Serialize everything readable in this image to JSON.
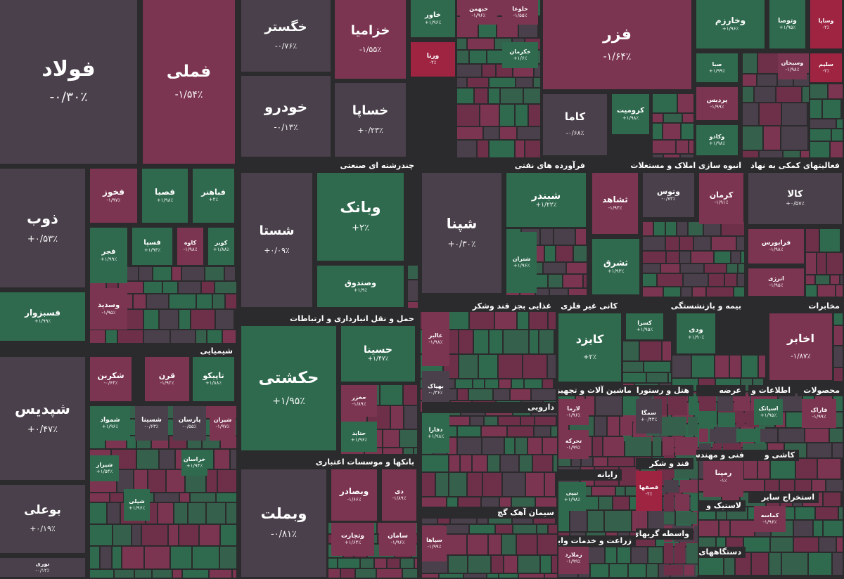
{
  "sections": [
    {
      "title": "چندرشته ای صنعتی"
    },
    {
      "title": "فرآورده های نفتی"
    },
    {
      "title": "انبوه سازی املاک و مستغلات"
    },
    {
      "title": "فعالیتهای کمکی به نهاد های"
    },
    {
      "title": "حمل و نقل انبارداری و ارتباطات"
    },
    {
      "title": "غذایی بجز قند وشکر"
    },
    {
      "title": "کانی غیر فلزی"
    },
    {
      "title": "بیمه و بازنشستگی"
    },
    {
      "title": "مخابرات"
    },
    {
      "title": "شیمیایی"
    },
    {
      "title": "بانکها و موسسات اعتباری"
    },
    {
      "title": "دارویی"
    },
    {
      "title": "ماشین آلات و تجهیزات"
    },
    {
      "title": "هتل و رستوران"
    },
    {
      "title": "عرضه"
    },
    {
      "title": "اطلاعات و"
    },
    {
      "title": "محصولات"
    },
    {
      "title": "سیمان آهک گچ"
    },
    {
      "title": "رایانه"
    },
    {
      "title": "قند و شکر"
    },
    {
      "title": "فنی و مهندسی"
    },
    {
      "title": "کاشی و"
    },
    {
      "title": "لاستیک و"
    },
    {
      "title": "استخراج سایر"
    },
    {
      "title": "واسطه گریهای مالی"
    },
    {
      "title": "زراعت و خدمات وابسته"
    },
    {
      "title": "دستگاههای"
    }
  ],
  "tiles": [
    {
      "name": "فولاد",
      "change": "-۰/۳۰٪",
      "color": "#4a404b"
    },
    {
      "name": "فملی",
      "change": "-۱/۵۴٪",
      "color": "#7c3550"
    },
    {
      "name": "خگستر",
      "change": "-۰/۷۶٪",
      "color": "#4a404b"
    },
    {
      "name": "خودرو",
      "change": "-۰/۱۳٪",
      "color": "#4a404b"
    },
    {
      "name": "خزامیا",
      "change": "-۱/۵۵٪",
      "color": "#7c3550"
    },
    {
      "name": "خساپا",
      "change": "+۰/۲۳٪",
      "color": "#4a404b"
    },
    {
      "name": "خاور",
      "change": "+۱/۹۶٪",
      "color": "#2f6a4e"
    },
    {
      "name": "ورنا",
      "change": "-۲٪",
      "color": "#9e2442"
    },
    {
      "name": "خبهمن",
      "change": "-۱/۹۶٪",
      "color": "#7c3550"
    },
    {
      "name": "خلوعا",
      "change": "-۱/۵۵٪",
      "color": "#7c3550"
    },
    {
      "name": "خکرمان",
      "change": "+۱/۶٪",
      "color": "#2f6a4e"
    },
    {
      "name": "فزر",
      "change": "-۱/۶۴٪",
      "color": "#7c3550"
    },
    {
      "name": "کاما",
      "change": "-۰/۶۸٪",
      "color": "#4a404b"
    },
    {
      "name": "کرومیت",
      "change": "+۱/۹۸٪",
      "color": "#2f6a4e"
    },
    {
      "name": "وخارزم",
      "change": "+۱/۹۶٪",
      "color": "#2f6a4e"
    },
    {
      "name": "وتوصا",
      "change": "+۱/۹۵٪",
      "color": "#2f6a4e"
    },
    {
      "name": "وساپا",
      "change": "-۲٪",
      "color": "#9e2442"
    },
    {
      "name": "صبا",
      "change": "+۱/۹۹٪",
      "color": "#2f6a4e"
    },
    {
      "name": "سلیم",
      "change": "-۲٪",
      "color": "#9e2442"
    },
    {
      "name": "وسبحان",
      "change": "-۱/۹۸٪",
      "color": "#7c3550"
    },
    {
      "name": "پردیس",
      "change": "-۱/۹۹٪",
      "color": "#7c3550"
    },
    {
      "name": "وکادو",
      "change": "+۱/۹۸٪",
      "color": "#2f6a4e"
    },
    {
      "name": "ذوب",
      "change": "+۰/۵۳٪",
      "color": "#4a404b"
    },
    {
      "name": "فسبزوار",
      "change": "+۱/۹۹٪",
      "color": "#2f6a4e"
    },
    {
      "name": "فخوز",
      "change": "-۱/۹۷٪",
      "color": "#7c3550"
    },
    {
      "name": "فصبا",
      "change": "+۱/۹۸٪",
      "color": "#2f6a4e"
    },
    {
      "name": "فباهنر",
      "change": "+۲٪",
      "color": "#2f6a4e"
    },
    {
      "name": "فجر",
      "change": "+۱/۹۹٪",
      "color": "#2f6a4e"
    },
    {
      "name": "فسپا",
      "change": "+۱/۹۳٪",
      "color": "#2f6a4e"
    },
    {
      "name": "کاوه",
      "change": "-۱/۹۸٪",
      "color": "#7c3550"
    },
    {
      "name": "کویر",
      "change": "+۱/۸۸٪",
      "color": "#2f6a4e"
    },
    {
      "name": "وسدید",
      "change": "-۱/۹۵٪",
      "color": "#7c3550"
    },
    {
      "name": "شستا",
      "change": "+۰/۰۹٪",
      "color": "#4a404b"
    },
    {
      "name": "وبانک",
      "change": "+۲٪",
      "color": "#2f6a4e"
    },
    {
      "name": "وصندوق",
      "change": "+۱/۹٪",
      "color": "#2f6a4e"
    },
    {
      "name": "شپنا",
      "change": "+۰/۳۰٪",
      "color": "#4a404b"
    },
    {
      "name": "شبندر",
      "change": "+۱/۲۲٪",
      "color": "#2f6a4e"
    },
    {
      "name": "شتران",
      "change": "+۱/۹۶٪",
      "color": "#2f6a4e"
    },
    {
      "name": "ثشاهد",
      "change": "-۱/۹۳٪",
      "color": "#7c3550"
    },
    {
      "name": "وتوس",
      "change": "-۰/۷۳٪",
      "color": "#4a404b"
    },
    {
      "name": "کرمان",
      "change": "-۱/۹۱٪",
      "color": "#7c3550"
    },
    {
      "name": "کالا",
      "change": "+۰/۵۷٪",
      "color": "#4a404b"
    },
    {
      "name": "ثشرق",
      "change": "+۱/۹۳٪",
      "color": "#2f6a4e"
    },
    {
      "name": "فرابورس",
      "change": "-۱/۹۸٪",
      "color": "#7c3550"
    },
    {
      "name": "انرژی",
      "change": "-۱/۹۵٪",
      "color": "#7c3550"
    },
    {
      "name": "شپدیس",
      "change": "+۰/۴۷٪",
      "color": "#4a404b"
    },
    {
      "name": "بوعلی",
      "change": "+۰/۱۹٪",
      "color": "#4a404b"
    },
    {
      "name": "نوری",
      "change": "-۰/۱۲٪",
      "color": "#4a404b"
    },
    {
      "name": "شکربن",
      "change": "-۰/۶۴٪",
      "color": "#7c3550"
    },
    {
      "name": "قرن",
      "change": "-۱/۹۲٪",
      "color": "#7c3550"
    },
    {
      "name": "تاپیکو",
      "change": "+۱/۸۸٪",
      "color": "#2f6a4e"
    },
    {
      "name": "شمواد",
      "change": "+۱/۹۶٪",
      "color": "#2f6a4e"
    },
    {
      "name": "شسینا",
      "change": "-۰/۶۳٪",
      "color": "#4a404b"
    },
    {
      "name": "پارسان",
      "change": "-۰/۵۵٪",
      "color": "#4a404b"
    },
    {
      "name": "شیران",
      "change": "-۱/۹۷٪",
      "color": "#7c3550"
    },
    {
      "name": "حکشتی",
      "change": "+۱/۹۵٪",
      "color": "#2f6a4e"
    },
    {
      "name": "حسینا",
      "change": "+۱/۴۷٪",
      "color": "#2f6a4e"
    },
    {
      "name": "حخزر",
      "change": "-۱/۸۹٪",
      "color": "#7c3550"
    },
    {
      "name": "حتاید",
      "change": "+۱/۹۶٪",
      "color": "#2f6a4e"
    },
    {
      "name": "غالبر",
      "change": "-۱/۹۸٪",
      "color": "#7c3550"
    },
    {
      "name": "بهپاک",
      "change": "-۰/۳۶٪",
      "color": "#4a404b"
    },
    {
      "name": "کایزد",
      "change": "+۲٪",
      "color": "#2f6a4e"
    },
    {
      "name": "کسرا",
      "change": "+۱/۹۵٪",
      "color": "#2f6a4e"
    },
    {
      "name": "ودی",
      "change": "+۱/۹۰٪",
      "color": "#2f6a4e"
    },
    {
      "name": "اخابر",
      "change": "-۱/۸۷٪",
      "color": "#7c3550"
    },
    {
      "name": "وبملت",
      "change": "-۰/۸۱٪",
      "color": "#4a404b"
    },
    {
      "name": "وبصادر",
      "change": "-۱/۶۶٪",
      "color": "#7c3550"
    },
    {
      "name": "دی",
      "change": "-۱/۸۹٪",
      "color": "#7c3550"
    },
    {
      "name": "وتجارت",
      "change": "+۱/۶۴٪",
      "color": "#7c3550"
    },
    {
      "name": "سامان",
      "change": "-۱/۹۶٪",
      "color": "#7c3550"
    },
    {
      "name": "دفارا",
      "change": "+۱/۹۸٪",
      "color": "#2f6a4e"
    },
    {
      "name": "قصفها",
      "change": "-۲٪",
      "color": "#9e2442"
    },
    {
      "name": "رمپنا",
      "change": "-۱٪",
      "color": "#7c3550"
    },
    {
      "name": "لازما",
      "change": "-۱/۹۶٪",
      "color": "#7c3550"
    },
    {
      "name": "تحرکه",
      "change": "-۱/۹۹٪",
      "color": "#7c3550"
    },
    {
      "name": "سمگا",
      "change": "+۰/۴۳٪",
      "color": "#4a404b"
    },
    {
      "name": "اسپاتک",
      "change": "+۱/۹۵٪",
      "color": "#2f6a4e"
    },
    {
      "name": "فاراک",
      "change": "-۱/۹۹٪",
      "color": "#7c3550"
    },
    {
      "name": "تیپی",
      "change": "+۱/۹۸٪",
      "color": "#2f6a4e"
    },
    {
      "name": "شیراز",
      "change": "+۱/۵۴٪",
      "color": "#2f6a4e"
    },
    {
      "name": "خراسان",
      "change": "+۱/۹۴٪",
      "color": "#2f6a4e"
    },
    {
      "name": "شپلی",
      "change": "+۱/۹۶٪",
      "color": "#2f6a4e"
    },
    {
      "name": "سپاها",
      "change": "-۱/۹۹٪",
      "color": "#7c3550"
    },
    {
      "name": "کماسه",
      "change": "-۱/۹۶٪",
      "color": "#7c3550"
    },
    {
      "name": "زملارد",
      "change": "-۱/۹۹٪",
      "color": "#7c3550"
    }
  ]
}
